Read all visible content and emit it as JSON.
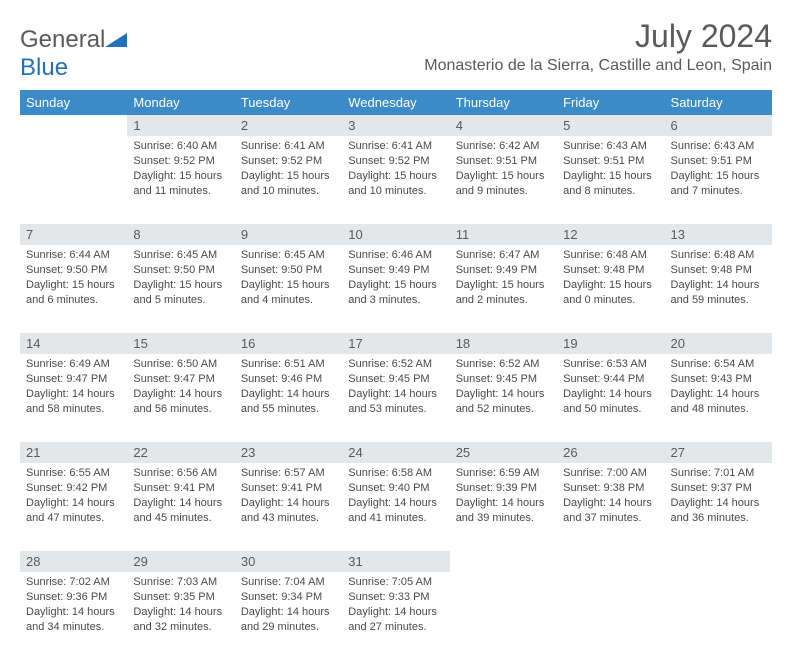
{
  "brand": {
    "part1": "General",
    "part2": "Blue"
  },
  "title": "July 2024",
  "location": "Monasterio de la Sierra, Castille and Leon, Spain",
  "colors": {
    "header_bg": "#3b8bc9",
    "daynum_bg": "#e4e7ea",
    "text": "#4a4a4a",
    "brand_blue": "#2271b8"
  },
  "weekdays": [
    "Sunday",
    "Monday",
    "Tuesday",
    "Wednesday",
    "Thursday",
    "Friday",
    "Saturday"
  ],
  "weeks": [
    {
      "nums": [
        "",
        "1",
        "2",
        "3",
        "4",
        "5",
        "6"
      ],
      "cells": [
        null,
        {
          "sunrise": "Sunrise: 6:40 AM",
          "sunset": "Sunset: 9:52 PM",
          "day1": "Daylight: 15 hours",
          "day2": "and 11 minutes."
        },
        {
          "sunrise": "Sunrise: 6:41 AM",
          "sunset": "Sunset: 9:52 PM",
          "day1": "Daylight: 15 hours",
          "day2": "and 10 minutes."
        },
        {
          "sunrise": "Sunrise: 6:41 AM",
          "sunset": "Sunset: 9:52 PM",
          "day1": "Daylight: 15 hours",
          "day2": "and 10 minutes."
        },
        {
          "sunrise": "Sunrise: 6:42 AM",
          "sunset": "Sunset: 9:51 PM",
          "day1": "Daylight: 15 hours",
          "day2": "and 9 minutes."
        },
        {
          "sunrise": "Sunrise: 6:43 AM",
          "sunset": "Sunset: 9:51 PM",
          "day1": "Daylight: 15 hours",
          "day2": "and 8 minutes."
        },
        {
          "sunrise": "Sunrise: 6:43 AM",
          "sunset": "Sunset: 9:51 PM",
          "day1": "Daylight: 15 hours",
          "day2": "and 7 minutes."
        }
      ]
    },
    {
      "nums": [
        "7",
        "8",
        "9",
        "10",
        "11",
        "12",
        "13"
      ],
      "cells": [
        {
          "sunrise": "Sunrise: 6:44 AM",
          "sunset": "Sunset: 9:50 PM",
          "day1": "Daylight: 15 hours",
          "day2": "and 6 minutes."
        },
        {
          "sunrise": "Sunrise: 6:45 AM",
          "sunset": "Sunset: 9:50 PM",
          "day1": "Daylight: 15 hours",
          "day2": "and 5 minutes."
        },
        {
          "sunrise": "Sunrise: 6:45 AM",
          "sunset": "Sunset: 9:50 PM",
          "day1": "Daylight: 15 hours",
          "day2": "and 4 minutes."
        },
        {
          "sunrise": "Sunrise: 6:46 AM",
          "sunset": "Sunset: 9:49 PM",
          "day1": "Daylight: 15 hours",
          "day2": "and 3 minutes."
        },
        {
          "sunrise": "Sunrise: 6:47 AM",
          "sunset": "Sunset: 9:49 PM",
          "day1": "Daylight: 15 hours",
          "day2": "and 2 minutes."
        },
        {
          "sunrise": "Sunrise: 6:48 AM",
          "sunset": "Sunset: 9:48 PM",
          "day1": "Daylight: 15 hours",
          "day2": "and 0 minutes."
        },
        {
          "sunrise": "Sunrise: 6:48 AM",
          "sunset": "Sunset: 9:48 PM",
          "day1": "Daylight: 14 hours",
          "day2": "and 59 minutes."
        }
      ]
    },
    {
      "nums": [
        "14",
        "15",
        "16",
        "17",
        "18",
        "19",
        "20"
      ],
      "cells": [
        {
          "sunrise": "Sunrise: 6:49 AM",
          "sunset": "Sunset: 9:47 PM",
          "day1": "Daylight: 14 hours",
          "day2": "and 58 minutes."
        },
        {
          "sunrise": "Sunrise: 6:50 AM",
          "sunset": "Sunset: 9:47 PM",
          "day1": "Daylight: 14 hours",
          "day2": "and 56 minutes."
        },
        {
          "sunrise": "Sunrise: 6:51 AM",
          "sunset": "Sunset: 9:46 PM",
          "day1": "Daylight: 14 hours",
          "day2": "and 55 minutes."
        },
        {
          "sunrise": "Sunrise: 6:52 AM",
          "sunset": "Sunset: 9:45 PM",
          "day1": "Daylight: 14 hours",
          "day2": "and 53 minutes."
        },
        {
          "sunrise": "Sunrise: 6:52 AM",
          "sunset": "Sunset: 9:45 PM",
          "day1": "Daylight: 14 hours",
          "day2": "and 52 minutes."
        },
        {
          "sunrise": "Sunrise: 6:53 AM",
          "sunset": "Sunset: 9:44 PM",
          "day1": "Daylight: 14 hours",
          "day2": "and 50 minutes."
        },
        {
          "sunrise": "Sunrise: 6:54 AM",
          "sunset": "Sunset: 9:43 PM",
          "day1": "Daylight: 14 hours",
          "day2": "and 48 minutes."
        }
      ]
    },
    {
      "nums": [
        "21",
        "22",
        "23",
        "24",
        "25",
        "26",
        "27"
      ],
      "cells": [
        {
          "sunrise": "Sunrise: 6:55 AM",
          "sunset": "Sunset: 9:42 PM",
          "day1": "Daylight: 14 hours",
          "day2": "and 47 minutes."
        },
        {
          "sunrise": "Sunrise: 6:56 AM",
          "sunset": "Sunset: 9:41 PM",
          "day1": "Daylight: 14 hours",
          "day2": "and 45 minutes."
        },
        {
          "sunrise": "Sunrise: 6:57 AM",
          "sunset": "Sunset: 9:41 PM",
          "day1": "Daylight: 14 hours",
          "day2": "and 43 minutes."
        },
        {
          "sunrise": "Sunrise: 6:58 AM",
          "sunset": "Sunset: 9:40 PM",
          "day1": "Daylight: 14 hours",
          "day2": "and 41 minutes."
        },
        {
          "sunrise": "Sunrise: 6:59 AM",
          "sunset": "Sunset: 9:39 PM",
          "day1": "Daylight: 14 hours",
          "day2": "and 39 minutes."
        },
        {
          "sunrise": "Sunrise: 7:00 AM",
          "sunset": "Sunset: 9:38 PM",
          "day1": "Daylight: 14 hours",
          "day2": "and 37 minutes."
        },
        {
          "sunrise": "Sunrise: 7:01 AM",
          "sunset": "Sunset: 9:37 PM",
          "day1": "Daylight: 14 hours",
          "day2": "and 36 minutes."
        }
      ]
    },
    {
      "nums": [
        "28",
        "29",
        "30",
        "31",
        "",
        "",
        ""
      ],
      "cells": [
        {
          "sunrise": "Sunrise: 7:02 AM",
          "sunset": "Sunset: 9:36 PM",
          "day1": "Daylight: 14 hours",
          "day2": "and 34 minutes."
        },
        {
          "sunrise": "Sunrise: 7:03 AM",
          "sunset": "Sunset: 9:35 PM",
          "day1": "Daylight: 14 hours",
          "day2": "and 32 minutes."
        },
        {
          "sunrise": "Sunrise: 7:04 AM",
          "sunset": "Sunset: 9:34 PM",
          "day1": "Daylight: 14 hours",
          "day2": "and 29 minutes."
        },
        {
          "sunrise": "Sunrise: 7:05 AM",
          "sunset": "Sunset: 9:33 PM",
          "day1": "Daylight: 14 hours",
          "day2": "and 27 minutes."
        },
        null,
        null,
        null
      ]
    }
  ]
}
